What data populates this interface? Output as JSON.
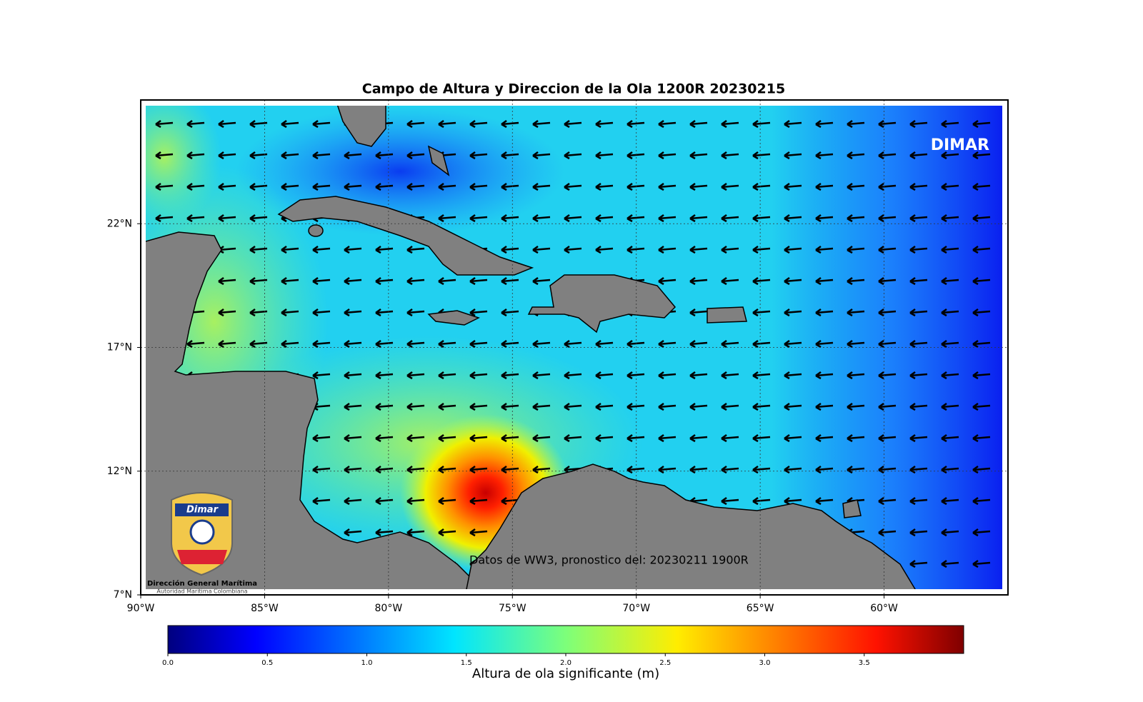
{
  "chart_data": {
    "type": "map",
    "title": "Campo de Altura y Direccion de la Ola 1200R 20230215",
    "annotation": "Datos de WW3, pronostico del: 20230211 1900R",
    "brand": "DIMAR",
    "logo_brand": "Dimar",
    "logo_title": "Dirección General Marítima",
    "logo_subtitle": "Autoridad Marítima Colombiana",
    "xlim": [
      -90,
      -55
    ],
    "ylim": [
      7,
      27
    ],
    "xticks": [
      {
        "value": -90,
        "label": "90°W"
      },
      {
        "value": -85,
        "label": "85°W"
      },
      {
        "value": -80,
        "label": "80°W"
      },
      {
        "value": -75,
        "label": "75°W"
      },
      {
        "value": -70,
        "label": "70°W"
      },
      {
        "value": -65,
        "label": "65°W"
      },
      {
        "value": -60,
        "label": "60°W"
      }
    ],
    "yticks": [
      {
        "value": 7,
        "label": "7°N"
      },
      {
        "value": 12,
        "label": "12°N"
      },
      {
        "value": 17,
        "label": "17°N"
      },
      {
        "value": 22,
        "label": "22°N"
      }
    ],
    "grid": true,
    "colorbar": {
      "label": "Altura de ola significante (m)",
      "lim": [
        0,
        4
      ],
      "ticks": [
        {
          "value": 0,
          "label": "0.0"
        },
        0.5,
        {
          "value": 1,
          "label": "1.0"
        },
        1.5,
        {
          "value": 2,
          "label": "2.0"
        },
        2.5,
        {
          "value": 3,
          "label": "3.0"
        },
        3.5
      ]
    }
  }
}
